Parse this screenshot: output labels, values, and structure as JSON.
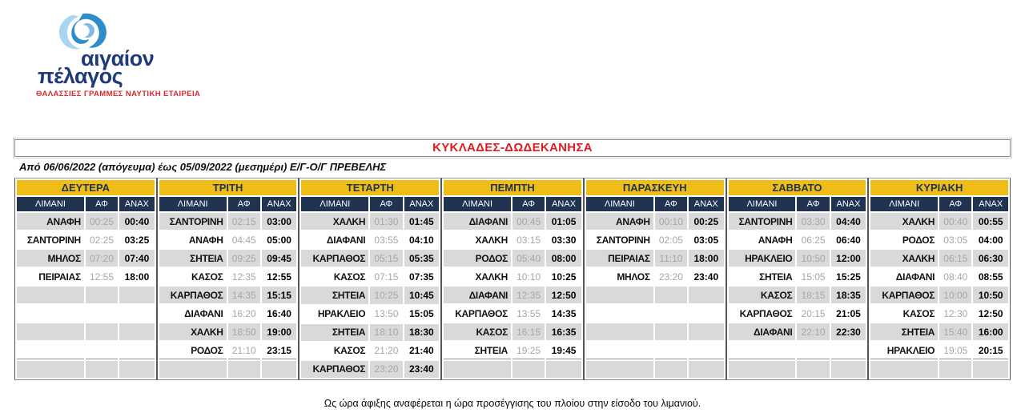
{
  "logo": {
    "line1": "αιγαίον",
    "line2": "πέλαγος",
    "tagline": "ΘΑΛΑΣΣΙΕΣ ΓΡΑΜΜΕΣ ΝΑΥΤΙΚΗ ΕΤΑΙΡΕΙΑ"
  },
  "header": {
    "title": "ΚΥΚΛΑΔΕΣ-ΔΩΔΕΚΑΝΗΣΑ",
    "subtitle": "Από 06/06/2022 (απόγευμα) έως 05/09/2022 (μεσημέρι) Ε/Γ-Ο/Γ ΠΡΕΒΕΛΗΣ"
  },
  "theme": {
    "gold": "#EFBD17",
    "navy": "#203452",
    "band": "#D9D9D9",
    "arr_gray": "#A6A6A6",
    "title_red": "#E11B1E",
    "brand_red": "#D9272E",
    "logo_blue": "#1E3A7B",
    "swirl_light_blue": "#AAD4F0",
    "swirl_mid_blue": "#2F8CCB"
  },
  "table": {
    "columns": [
      "ΛΙΜΑΝΙ",
      "ΑΦ",
      "ΑΝΑΧ"
    ],
    "row_count": 9,
    "days": [
      {
        "label": "ΔΕΥΤΕΡΑ",
        "rows": [
          {
            "port": "ΑΝΑΦΗ",
            "arrival": "00:25",
            "departure": "00:40"
          },
          {
            "port": "ΣΑΝΤΟΡΙΝΗ",
            "arrival": "02:25",
            "departure": "03:25"
          },
          {
            "port": "ΜΗΛΟΣ",
            "arrival": "07:20",
            "departure": "07:40"
          },
          {
            "port": "ΠΕΙΡΑΙΑΣ",
            "arrival": "12:55",
            "departure": "18:00"
          }
        ]
      },
      {
        "label": "ΤΡΙΤΗ",
        "rows": [
          {
            "port": "ΣΑΝΤΟΡΙΝΗ",
            "arrival": "02:15",
            "departure": "03:00"
          },
          {
            "port": "ΑΝΑΦΗ",
            "arrival": "04:45",
            "departure": "05:00"
          },
          {
            "port": "ΣΗΤΕΙΑ",
            "arrival": "09:25",
            "departure": "09:45"
          },
          {
            "port": "ΚΑΣΟΣ",
            "arrival": "12:35",
            "departure": "12:55"
          },
          {
            "port": "ΚΑΡΠΑΘΟΣ",
            "arrival": "14:35",
            "departure": "15:15"
          },
          {
            "port": "ΔΙΑΦΑΝΙ",
            "arrival": "16:20",
            "departure": "16:40"
          },
          {
            "port": "ΧΑΛΚΗ",
            "arrival": "18:50",
            "departure": "19:00"
          },
          {
            "port": "ΡΟΔΟΣ",
            "arrival": "21:10",
            "departure": "23:15"
          }
        ]
      },
      {
        "label": "ΤΕΤΑΡΤΗ",
        "rows": [
          {
            "port": "ΧΑΛΚΗ",
            "arrival": "01:30",
            "departure": "01:45"
          },
          {
            "port": "ΔΙΑΦΑΝΙ",
            "arrival": "03:55",
            "departure": "04:10"
          },
          {
            "port": "ΚΑΡΠΑΘΟΣ",
            "arrival": "05:15",
            "departure": "05:35"
          },
          {
            "port": "ΚΑΣΟΣ",
            "arrival": "07:15",
            "departure": "07:35"
          },
          {
            "port": "ΣΗΤΕΙΑ",
            "arrival": "10:25",
            "departure": "10:45"
          },
          {
            "port": "ΗΡΑΚΛΕΙΟ",
            "arrival": "13:50",
            "departure": "15:05"
          },
          {
            "port": "ΣΗΤΕΙΑ",
            "arrival": "18:10",
            "departure": "18:30"
          },
          {
            "port": "ΚΑΣΟΣ",
            "arrival": "21:20",
            "departure": "21:40"
          },
          {
            "port": "ΚΑΡΠΑΘΟΣ",
            "arrival": "23:20",
            "departure": "23:40"
          }
        ]
      },
      {
        "label": "ΠΕΜΠΤΗ",
        "rows": [
          {
            "port": "ΔΙΑΦΑΝΙ",
            "arrival": "00:45",
            "departure": "01:05"
          },
          {
            "port": "ΧΑΛΚΗ",
            "arrival": "03:15",
            "departure": "03:30"
          },
          {
            "port": "ΡΟΔΟΣ",
            "arrival": "05:40",
            "departure": "08:00"
          },
          {
            "port": "ΧΑΛΚΗ",
            "arrival": "10:10",
            "departure": "10:25"
          },
          {
            "port": "ΔΙΑΦΑΝΙ",
            "arrival": "12:35",
            "departure": "12:50"
          },
          {
            "port": "ΚΑΡΠΑΘΟΣ",
            "arrival": "13:55",
            "departure": "14:35"
          },
          {
            "port": "ΚΑΣΟΣ",
            "arrival": "16:15",
            "departure": "16:35"
          },
          {
            "port": "ΣΗΤΕΙΑ",
            "arrival": "19:25",
            "departure": "19:45"
          }
        ]
      },
      {
        "label": "ΠΑΡΑΣΚΕΥΗ",
        "rows": [
          {
            "port": "ΑΝΑΦΗ",
            "arrival": "00:10",
            "departure": "00:25"
          },
          {
            "port": "ΣΑΝΤΟΡΙΝΗ",
            "arrival": "02:05",
            "departure": "03:05"
          },
          {
            "port": "ΠΕΙΡΑΙΑΣ",
            "arrival": "11:10",
            "departure": "18:00"
          },
          {
            "port": "ΜΗΛΟΣ",
            "arrival": "23:20",
            "departure": "23:40"
          }
        ]
      },
      {
        "label": "ΣΑΒΒΑΤΟ",
        "rows": [
          {
            "port": "ΣΑΝΤΟΡΙΝΗ",
            "arrival": "03:30",
            "departure": "04:40"
          },
          {
            "port": "ΑΝΑΦΗ",
            "arrival": "06:25",
            "departure": "06:40"
          },
          {
            "port": "ΗΡΑΚΛΕΙΟ",
            "arrival": "10:50",
            "departure": "12:00"
          },
          {
            "port": "ΣΗΤΕΙΑ",
            "arrival": "15:05",
            "departure": "15:25"
          },
          {
            "port": "ΚΑΣΟΣ",
            "arrival": "18:15",
            "departure": "18:35"
          },
          {
            "port": "ΚΑΡΠΑΘΟΣ",
            "arrival": "20:15",
            "departure": "21:05"
          },
          {
            "port": "ΔΙΑΦΑΝΙ",
            "arrival": "22:10",
            "departure": "22:30"
          }
        ]
      },
      {
        "label": "ΚΥΡΙΑΚΗ",
        "rows": [
          {
            "port": "ΧΑΛΚΗ",
            "arrival": "00:40",
            "departure": "00:55"
          },
          {
            "port": "ΡΟΔΟΣ",
            "arrival": "03:05",
            "departure": "04:00"
          },
          {
            "port": "ΧΑΛΚΗ",
            "arrival": "06:15",
            "departure": "06:30"
          },
          {
            "port": "ΔΙΑΦΑΝΙ",
            "arrival": "08:40",
            "departure": "08:55"
          },
          {
            "port": "ΚΑΡΠΑΘΟΣ",
            "arrival": "10:00",
            "departure": "10:50"
          },
          {
            "port": "ΚΑΣΟΣ",
            "arrival": "12:30",
            "departure": "12:50"
          },
          {
            "port": "ΣΗΤΕΙΑ",
            "arrival": "15:40",
            "departure": "16:00"
          },
          {
            "port": "ΗΡΑΚΛΕΙΟ",
            "arrival": "19:05",
            "departure": "20:15"
          }
        ]
      }
    ]
  },
  "footer": {
    "note": "Ως ώρα άφιξης αναφέρεται η ώρα προσέγγισης του πλοίου στην είσοδο του λιμανιού."
  }
}
